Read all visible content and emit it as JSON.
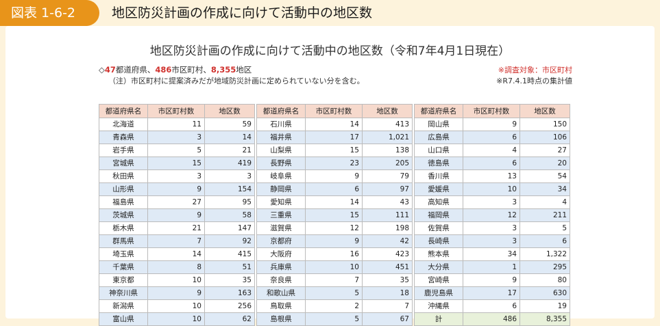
{
  "header": {
    "badge": "図表 1-6-2",
    "title": "地区防災計画の作成に向けて活動中の地区数"
  },
  "figure": {
    "title": "地区防災計画の作成に向けて活動中の地区数（令和7年4月1日現在）",
    "summary": {
      "prefix": "◇",
      "pref_count": "47",
      "pref_label": "都道府県、",
      "muni_count": "486",
      "muni_label": "市区町村、",
      "district_count": "8,355",
      "district_label": "地区"
    },
    "note": "（注）市区町村に提案済みだが地域防災計画に定められていない分を含む。",
    "survey_target": "※調査対象：市区町村",
    "as_of": "※R7.4.1時点の集計値"
  },
  "columns": [
    "都道府県名",
    "市区町村数",
    "地区数"
  ],
  "tables": [
    [
      [
        "北海道",
        "11",
        "59"
      ],
      [
        "青森県",
        "3",
        "14"
      ],
      [
        "岩手県",
        "5",
        "21"
      ],
      [
        "宮城県",
        "15",
        "419"
      ],
      [
        "秋田県",
        "3",
        "3"
      ],
      [
        "山形県",
        "9",
        "154"
      ],
      [
        "福島県",
        "27",
        "95"
      ],
      [
        "茨城県",
        "9",
        "58"
      ],
      [
        "栃木県",
        "21",
        "147"
      ],
      [
        "群馬県",
        "7",
        "92"
      ],
      [
        "埼玉県",
        "14",
        "415"
      ],
      [
        "千葉県",
        "8",
        "51"
      ],
      [
        "東京都",
        "10",
        "35"
      ],
      [
        "神奈川県",
        "9",
        "163"
      ],
      [
        "新潟県",
        "10",
        "256"
      ],
      [
        "富山県",
        "10",
        "62"
      ]
    ],
    [
      [
        "石川県",
        "14",
        "413"
      ],
      [
        "福井県",
        "17",
        "1,021"
      ],
      [
        "山梨県",
        "15",
        "138"
      ],
      [
        "長野県",
        "23",
        "205"
      ],
      [
        "岐阜県",
        "9",
        "79"
      ],
      [
        "静岡県",
        "6",
        "97"
      ],
      [
        "愛知県",
        "14",
        "43"
      ],
      [
        "三重県",
        "15",
        "111"
      ],
      [
        "滋賀県",
        "12",
        "198"
      ],
      [
        "京都府",
        "9",
        "42"
      ],
      [
        "大阪府",
        "16",
        "423"
      ],
      [
        "兵庫県",
        "10",
        "451"
      ],
      [
        "奈良県",
        "7",
        "35"
      ],
      [
        "和歌山県",
        "5",
        "18"
      ],
      [
        "鳥取県",
        "2",
        "7"
      ],
      [
        "島根県",
        "5",
        "67"
      ]
    ],
    [
      [
        "岡山県",
        "9",
        "150"
      ],
      [
        "広島県",
        "6",
        "106"
      ],
      [
        "山口県",
        "4",
        "27"
      ],
      [
        "徳島県",
        "6",
        "20"
      ],
      [
        "香川県",
        "13",
        "54"
      ],
      [
        "愛媛県",
        "10",
        "34"
      ],
      [
        "高知県",
        "3",
        "4"
      ],
      [
        "福岡県",
        "12",
        "211"
      ],
      [
        "佐賀県",
        "3",
        "5"
      ],
      [
        "長崎県",
        "3",
        "6"
      ],
      [
        "熊本県",
        "34",
        "1,322"
      ],
      [
        "大分県",
        "1",
        "295"
      ],
      [
        "宮崎県",
        "9",
        "80"
      ],
      [
        "鹿児島県",
        "17",
        "630"
      ],
      [
        "沖縄県",
        "6",
        "19"
      ],
      [
        "計",
        "486",
        "8,355"
      ]
    ]
  ]
}
